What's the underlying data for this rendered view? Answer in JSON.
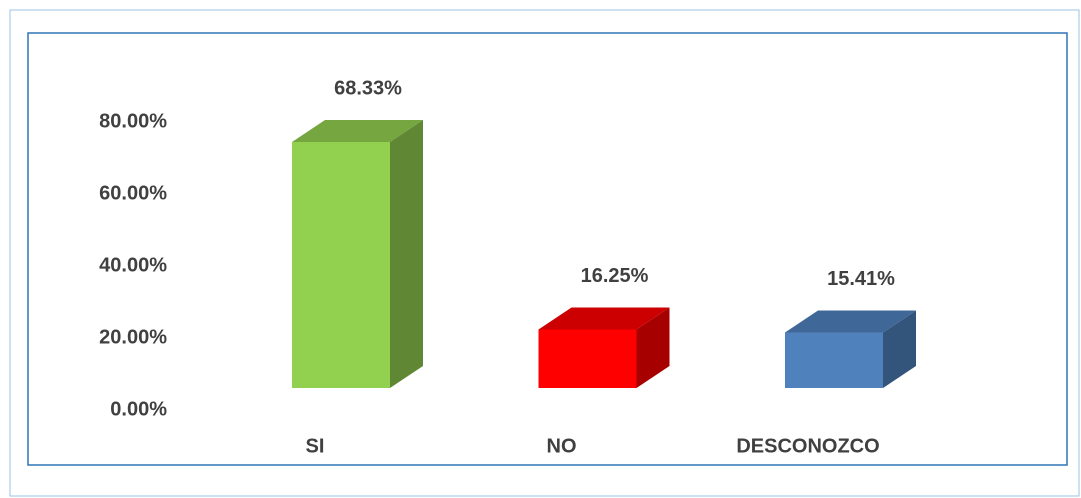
{
  "chart_data": {
    "type": "bar3d",
    "categories": [
      "SI",
      "NO",
      "DESCONOZCO"
    ],
    "values": [
      68.33,
      16.25,
      15.41
    ],
    "value_labels": [
      "68.33%",
      "16.25%",
      "15.41%"
    ],
    "colors": [
      "#92d050",
      "#ff0000",
      "#4f81bd"
    ],
    "ylim": [
      0,
      80
    ],
    "yticks": [
      {
        "value": 0,
        "label": "0.00%"
      },
      {
        "value": 20,
        "label": "20.00%"
      },
      {
        "value": 40,
        "label": "40.00%"
      },
      {
        "value": 60,
        "label": "60.00%"
      },
      {
        "value": 80,
        "label": "80.00%"
      }
    ]
  }
}
